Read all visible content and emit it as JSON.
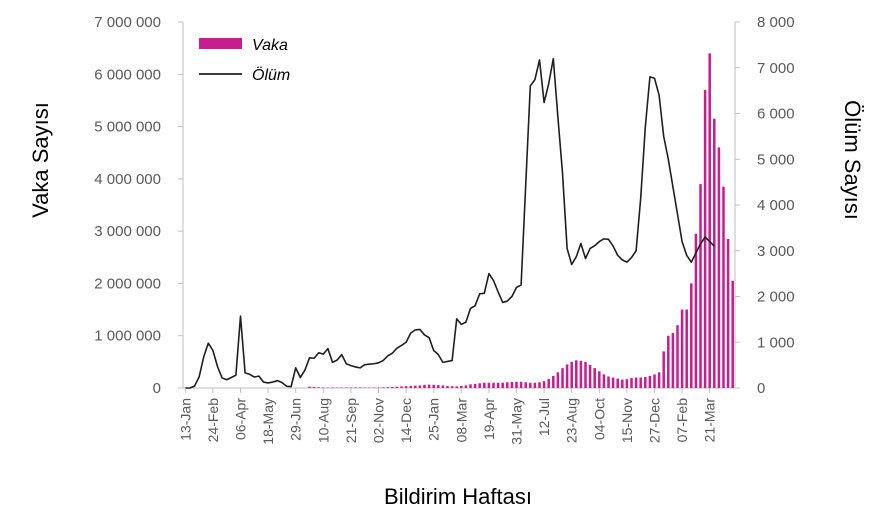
{
  "chart_data": {
    "type": "bar+line",
    "xlabel": "Bildirim Haftası",
    "ylabel_left": "Vaka Sayısı",
    "ylabel_right": "Ölüm Sayısı",
    "y_left": {
      "min": 0,
      "max": 7000000,
      "ticks": [
        0,
        1000000,
        2000000,
        3000000,
        4000000,
        5000000,
        6000000,
        7000000
      ],
      "tick_labels": [
        "0",
        "1 000 000",
        "2 000 000",
        "3 000 000",
        "4 000 000",
        "5 000 000",
        "6 000 000",
        "7 000 000"
      ]
    },
    "y_right": {
      "min": 0,
      "max": 8000,
      "ticks": [
        0,
        1000,
        2000,
        3000,
        4000,
        5000,
        6000,
        7000,
        8000
      ],
      "tick_labels": [
        "0",
        "1 000",
        "2 000",
        "3 000",
        "4 000",
        "5 000",
        "6 000",
        "7 000",
        "8 000"
      ]
    },
    "x_tick_labels": [
      "13-Jan",
      "24-Feb",
      "06-Apr",
      "18-May",
      "29-Jun",
      "10-Aug",
      "21-Sep",
      "02-Nov",
      "14-Dec",
      "25-Jan",
      "08-Mar",
      "19-Apr",
      "31-May",
      "12-Jul",
      "23-Aug",
      "04-Oct",
      "15-Nov",
      "27-Dec",
      "07-Feb",
      "21-Mar"
    ],
    "x_tick_positions": [
      0,
      6,
      12,
      18,
      24,
      30,
      36,
      42,
      48,
      54,
      60,
      66,
      72,
      78,
      84,
      90,
      96,
      102,
      108,
      114
    ],
    "legend_position": "top-left",
    "series": [
      {
        "name": "Vaka",
        "kind": "bar",
        "axis": "left",
        "color": "#c71e8f",
        "values": [
          0,
          0,
          0,
          0,
          0,
          0,
          0,
          0,
          0,
          0,
          0,
          0,
          0,
          0,
          0,
          0,
          0,
          0,
          0,
          0,
          0,
          0,
          0,
          0,
          0,
          0,
          0,
          25000,
          20000,
          15000,
          10000,
          8000,
          10000,
          9000,
          8000,
          10000,
          10000,
          12000,
          12000,
          10000,
          8000,
          8000,
          10000,
          12000,
          15000,
          20000,
          25000,
          30000,
          35000,
          40000,
          45000,
          50000,
          60000,
          65000,
          60000,
          55000,
          50000,
          40000,
          35000,
          30000,
          40000,
          50000,
          70000,
          80000,
          90000,
          100000,
          100000,
          100000,
          100000,
          100000,
          110000,
          115000,
          120000,
          120000,
          110000,
          100000,
          100000,
          110000,
          130000,
          170000,
          230000,
          300000,
          380000,
          450000,
          500000,
          530000,
          520000,
          500000,
          440000,
          380000,
          320000,
          260000,
          220000,
          200000,
          180000,
          160000,
          170000,
          190000,
          200000,
          200000,
          210000,
          230000,
          260000,
          300000,
          700000,
          1000000,
          1050000,
          1200000,
          1500000,
          1500000,
          2000000,
          2950000,
          3900000,
          5700000,
          6400000,
          5150000,
          4600000,
          3850000,
          2850000,
          2050000
        ]
      },
      {
        "name": "Ölüm",
        "kind": "line",
        "axis": "right",
        "color": "#1f1f1f",
        "values": [
          0,
          0,
          40,
          240,
          680,
          980,
          820,
          470,
          220,
          180,
          230,
          280,
          1570,
          330,
          300,
          240,
          260,
          130,
          110,
          130,
          160,
          120,
          40,
          30,
          440,
          230,
          390,
          660,
          650,
          770,
          740,
          860,
          560,
          610,
          730,
          530,
          490,
          460,
          440,
          510,
          520,
          530,
          550,
          600,
          700,
          760,
          870,
          930,
          1000,
          1200,
          1270,
          1280,
          1160,
          1100,
          820,
          730,
          560,
          580,
          600,
          1510,
          1390,
          1440,
          1740,
          1800,
          2060,
          2070,
          2500,
          2350,
          2100,
          1870,
          1900,
          2000,
          2200,
          2250,
          4430,
          6600,
          6740,
          7170,
          6240,
          6650,
          7200,
          5920,
          4700,
          3050,
          2700,
          2870,
          3160,
          2830,
          3050,
          3110,
          3200,
          3260,
          3250,
          3100,
          2900,
          2800,
          2750,
          2850,
          3000,
          4150,
          5700,
          6800,
          6770,
          6400,
          5500,
          5000,
          4400,
          3800,
          3200,
          2900,
          2750,
          2950,
          3150,
          3300,
          3200,
          3100
        ]
      }
    ]
  }
}
